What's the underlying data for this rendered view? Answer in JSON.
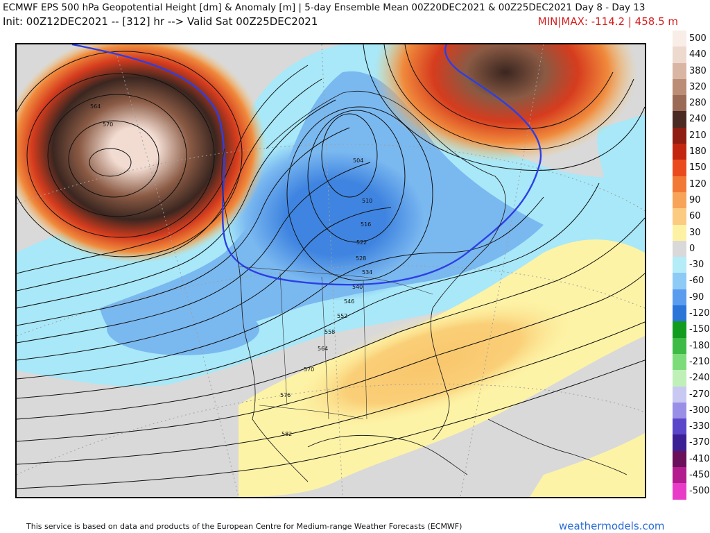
{
  "header": {
    "title": "ECMWF EPS 500 hPa Geopotential Height [dm] & Anomaly [m] | 5-day Ensemble Mean 00Z20DEC2021 & 00Z25DEC2021   Day 8 - Day 13",
    "init_line": "Init: 00Z12DEC2021 -- [312] hr --> Valid Sat 00Z25DEC2021",
    "minmax": "MIN|MAX: -114.2 | 458.5 m"
  },
  "colors": {
    "ridge_core": "#f2dcd2",
    "ridge_brown": "#8a5a44",
    "ridge_dark": "#3a2620",
    "ridge_red": "#d63c1e",
    "ridge_orange": "#f08a3c",
    "ridge_light": "#f9c66c",
    "ridge_yellow": "#fdf3a6",
    "neutral": "#d9d9d9",
    "trough_light": "#a8e8f8",
    "trough_mid": "#7ab8f0",
    "trough_deep": "#3f84e0",
    "contour_highlight": "#2c3fe6"
  },
  "colorbar": [
    {
      "label": "500",
      "color": "#f9ede8"
    },
    {
      "label": "440",
      "color": "#eed9cf"
    },
    {
      "label": "380",
      "color": "#d9b6a4"
    },
    {
      "label": "320",
      "color": "#bb8c76"
    },
    {
      "label": "280",
      "color": "#9a6a56"
    },
    {
      "label": "240",
      "color": "#4a2a22"
    },
    {
      "label": "210",
      "color": "#8f1d12"
    },
    {
      "label": "180",
      "color": "#c2260f"
    },
    {
      "label": "150",
      "color": "#e94b1f"
    },
    {
      "label": "120",
      "color": "#f27836"
    },
    {
      "label": "90",
      "color": "#f7a35a"
    },
    {
      "label": "60",
      "color": "#fbcb82"
    },
    {
      "label": "30",
      "color": "#fdf2a4"
    },
    {
      "label": "0",
      "color": "#d9d9d9"
    },
    {
      "label": "-30",
      "color": "#b4ecf8"
    },
    {
      "label": "-60",
      "color": "#8ecaf6"
    },
    {
      "label": "-90",
      "color": "#5a9cee"
    },
    {
      "label": "-120",
      "color": "#2b75d8"
    },
    {
      "label": "-150",
      "color": "#119c1e"
    },
    {
      "label": "-180",
      "color": "#3dbb46"
    },
    {
      "label": "-210",
      "color": "#7ddc7a"
    },
    {
      "label": "-240",
      "color": "#bff0b8"
    },
    {
      "label": "-270",
      "color": "#c9c8f2"
    },
    {
      "label": "-300",
      "color": "#9a8fe6"
    },
    {
      "label": "-330",
      "color": "#5a46c8"
    },
    {
      "label": "-370",
      "color": "#3b1f94"
    },
    {
      "label": "-410",
      "color": "#6a0f5a"
    },
    {
      "label": "-450",
      "color": "#b21c8e"
    },
    {
      "label": "-500",
      "color": "#e83cc8"
    }
  ],
  "contour_labels": [
    {
      "text": "564"
    },
    {
      "text": "570"
    },
    {
      "text": "504"
    },
    {
      "text": "510"
    },
    {
      "text": "516"
    },
    {
      "text": "522"
    },
    {
      "text": "528"
    },
    {
      "text": "534"
    },
    {
      "text": "540"
    },
    {
      "text": "546"
    },
    {
      "text": "552"
    },
    {
      "text": "558"
    },
    {
      "text": "564"
    },
    {
      "text": "570"
    },
    {
      "text": "576"
    },
    {
      "text": "582"
    }
  ],
  "footer": {
    "attribution": "This service is based on data and products of the European Centre for Medium-range Weather Forecasts (ECMWF)",
    "brand": "weathermodels.com"
  }
}
